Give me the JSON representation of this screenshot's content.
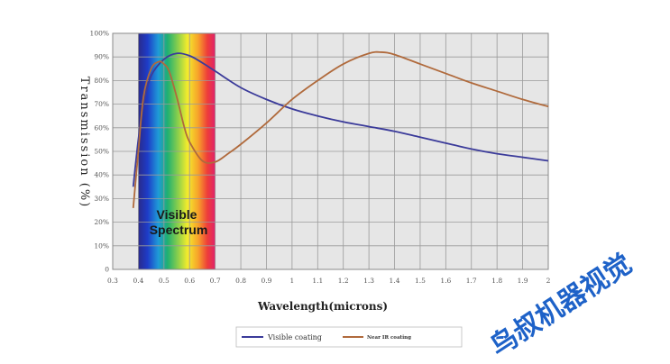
{
  "chart_data": {
    "type": "line",
    "title": "",
    "xlabel": "Wavelength(microns)",
    "ylabel": "Transmission (%)",
    "xlim": [
      0.3,
      2.0
    ],
    "ylim": [
      0,
      100
    ],
    "x_ticks": [
      "0.3",
      "0.4",
      "0.5",
      "0.6",
      "0.7",
      "0.8",
      "0.9",
      "1",
      "1.1",
      "1.2",
      "1.3",
      "1.4",
      "1.5",
      "1.6",
      "1.7",
      "1.8",
      "1.9",
      "2"
    ],
    "y_ticks": [
      "0",
      "10%",
      "20%",
      "30%",
      "40%",
      "50%",
      "60%",
      "70%",
      "80%",
      "90%",
      "100%"
    ],
    "grid": true,
    "legend_position": "bottom",
    "annotation": {
      "line1": "Visible",
      "line2": "Spectrum",
      "x_range": [
        0.4,
        0.7
      ]
    },
    "series": [
      {
        "name": "Visible coating",
        "color": "#3b3b9a",
        "x": [
          0.38,
          0.4,
          0.42,
          0.45,
          0.5,
          0.55,
          0.6,
          0.65,
          0.7,
          0.8,
          0.9,
          1.0,
          1.1,
          1.2,
          1.3,
          1.4,
          1.5,
          1.6,
          1.7,
          1.8,
          1.9,
          2.0
        ],
        "y": [
          35,
          55,
          70,
          82,
          89,
          91.5,
          90.5,
          87.5,
          84,
          77,
          72,
          68,
          65,
          62.5,
          60.5,
          58.5,
          56,
          53.5,
          51,
          49,
          47.5,
          46
        ]
      },
      {
        "name": "Near IR coating",
        "color": "#b06a3c",
        "x": [
          0.38,
          0.4,
          0.42,
          0.45,
          0.48,
          0.5,
          0.52,
          0.55,
          0.58,
          0.6,
          0.65,
          0.7,
          0.75,
          0.8,
          0.9,
          1.0,
          1.1,
          1.2,
          1.3,
          1.35,
          1.4,
          1.5,
          1.6,
          1.7,
          1.8,
          1.9,
          2.0
        ],
        "y": [
          26,
          50,
          73,
          85,
          88,
          87,
          84,
          73,
          60,
          54,
          46,
          45.5,
          49,
          53,
          62,
          72,
          80,
          87,
          91.5,
          92,
          91,
          87,
          83,
          79,
          75.5,
          72,
          69
        ]
      }
    ]
  },
  "watermark": "鸟叔机器视觉"
}
